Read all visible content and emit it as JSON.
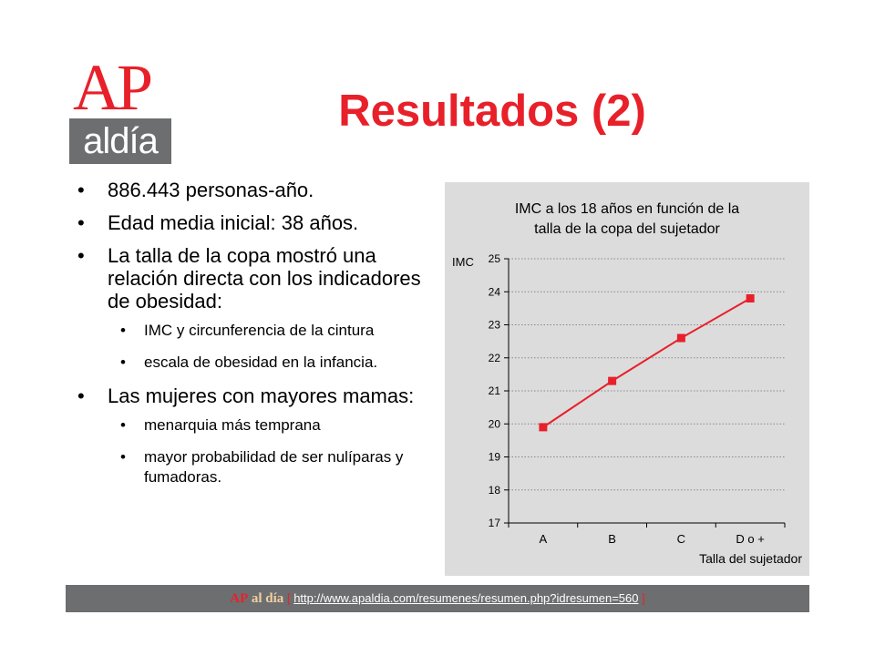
{
  "logo": {
    "ap": "AP",
    "aldia": "aldía"
  },
  "slide": {
    "title": "Resultados (2)"
  },
  "bullets": [
    {
      "text": "886.443 personas-año."
    },
    {
      "text": "Edad media inicial: 38 años."
    },
    {
      "text": "La talla de la copa mostró una relación directa con los indicadores de obesidad:",
      "sub": [
        "IMC y circunferencia de la cintura",
        "escala de obesidad en la infancia."
      ]
    },
    {
      "text": "Las mujeres con mayores mamas:",
      "sub": [
        "menarquia más temprana",
        "mayor probabilidad de ser nulíparas y fumadoras."
      ]
    }
  ],
  "chart_data": {
    "type": "line",
    "title": "IMC a los 18 años en función de la talla de la copa del sujetador",
    "title_lines": [
      "IMC a los 18 años en función de la",
      "talla de la copa del sujetador"
    ],
    "xlabel": "Talla del sujetador",
    "ylabel": "IMC",
    "categories": [
      "A",
      "B",
      "C",
      "D o +"
    ],
    "series": [
      {
        "values": [
          19.9,
          21.3,
          22.6,
          23.8
        ]
      }
    ],
    "ylim": [
      17,
      25
    ],
    "yticks": [
      17,
      18,
      19,
      20,
      21,
      22,
      23,
      24,
      25
    ],
    "grid": true,
    "colors": {
      "line": "#e8202a",
      "marker": "#e8202a",
      "grid": "#888888",
      "background": "#dcdcdc"
    }
  },
  "footer": {
    "brand_ap": "AP",
    "brand_aldia": "al día",
    "open_bracket": "[",
    "url": "http://www.apaldia.com/resumenes/resumen.php?idresumen=560",
    "close_bracket": "]"
  },
  "colors": {
    "accent": "#e8202a",
    "logo_box": "#6d6e70"
  }
}
